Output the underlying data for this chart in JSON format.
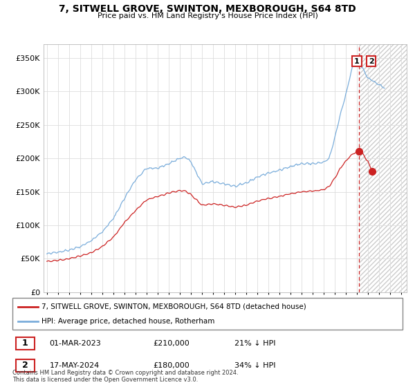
{
  "title_line1": "7, SITWELL GROVE, SWINTON, MEXBOROUGH, S64 8TD",
  "title_line2": "Price paid vs. HM Land Registry's House Price Index (HPI)",
  "ylim": [
    0,
    370000
  ],
  "yticks": [
    0,
    50000,
    100000,
    150000,
    200000,
    250000,
    300000,
    350000
  ],
  "ytick_labels": [
    "£0",
    "£50K",
    "£100K",
    "£150K",
    "£200K",
    "£250K",
    "£300K",
    "£350K"
  ],
  "hpi_color": "#7aaddb",
  "price_color": "#cc2222",
  "legend1_label": "7, SITWELL GROVE, SWINTON, MEXBOROUGH, S64 8TD (detached house)",
  "legend2_label": "HPI: Average price, detached house, Rotherham",
  "annotation1_date": "01-MAR-2023",
  "annotation1_price": "£210,000",
  "annotation1_pct": "21% ↓ HPI",
  "annotation2_date": "17-MAY-2024",
  "annotation2_price": "£180,000",
  "annotation2_pct": "34% ↓ HPI",
  "footer": "Contains HM Land Registry data © Crown copyright and database right 2024.\nThis data is licensed under the Open Government Licence v3.0.",
  "shade_start_year": 2023.17,
  "shade_end_year": 2027.5,
  "sale1_year": 2023.17,
  "sale1_price": 210000,
  "sale2_year": 2024.38,
  "sale2_price": 180000,
  "xmin": 1994.7,
  "xmax": 2027.5
}
